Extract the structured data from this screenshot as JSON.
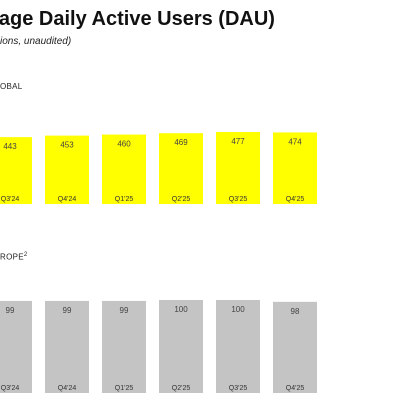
{
  "header": {
    "title": "erage Daily Active Users (DAU)",
    "subtitle": "ions, unaudited)"
  },
  "chart_data": [
    {
      "type": "bar",
      "panel_label": "OBAL",
      "categories": [
        "Q3'24",
        "Q4'24",
        "Q1'25",
        "Q2'25",
        "Q3'25",
        "Q4'25"
      ],
      "values": [
        443,
        453,
        460,
        469,
        477,
        474
      ],
      "color": "#ffff00"
    },
    {
      "type": "bar",
      "panel_label": "ROPE",
      "panel_label_sup": "2",
      "categories": [
        "Q3'24",
        "Q4'24",
        "Q1'25",
        "Q2'25",
        "Q3'25",
        "Q4'25"
      ],
      "values": [
        99,
        99,
        99,
        100,
        100,
        98
      ],
      "color": "#c4c4c4"
    }
  ]
}
